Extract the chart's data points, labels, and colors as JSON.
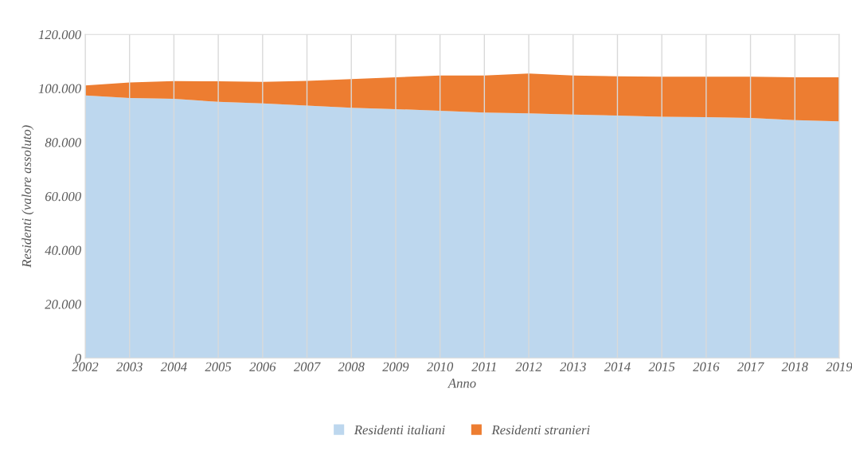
{
  "chart_data": {
    "type": "area",
    "stacked": true,
    "xlabel": "Anno",
    "ylabel": "Residenti (valore assoluto)",
    "x": [
      2002,
      2003,
      2004,
      2005,
      2006,
      2007,
      2008,
      2009,
      2010,
      2011,
      2012,
      2013,
      2014,
      2015,
      2016,
      2017,
      2018,
      2019
    ],
    "series": [
      {
        "name": "Residenti italiani",
        "color": "#bdd7ee",
        "values": [
          97400,
          96400,
          96100,
          95000,
          94400,
          93600,
          92800,
          92300,
          91700,
          91000,
          90700,
          90300,
          89900,
          89500,
          89300,
          89000,
          88200,
          87800
        ]
      },
      {
        "name": "Residenti stranieri",
        "color": "#ed7d31",
        "values": [
          3700,
          5800,
          6600,
          7600,
          8000,
          9200,
          10600,
          11800,
          13100,
          13800,
          14800,
          14500,
          14600,
          14800,
          15000,
          15300,
          15900,
          16300
        ]
      }
    ],
    "xlim": [
      2002,
      2019
    ],
    "xticks": [
      2002,
      2003,
      2004,
      2005,
      2006,
      2007,
      2008,
      2009,
      2010,
      2011,
      2012,
      2013,
      2014,
      2015,
      2016,
      2017,
      2018,
      2019
    ],
    "ylim": [
      0,
      120000
    ],
    "yticks": [
      0,
      {
        "value": 20000,
        "label": "20.000"
      },
      {
        "value": 40000,
        "label": "40.000"
      },
      {
        "value": 60000,
        "label": "60.000"
      },
      {
        "value": 80000,
        "label": "80.000"
      },
      {
        "value": 100000,
        "label": "100.000"
      },
      {
        "value": 120000,
        "label": "120.000"
      }
    ],
    "grid": "x",
    "legend": "bottom"
  }
}
